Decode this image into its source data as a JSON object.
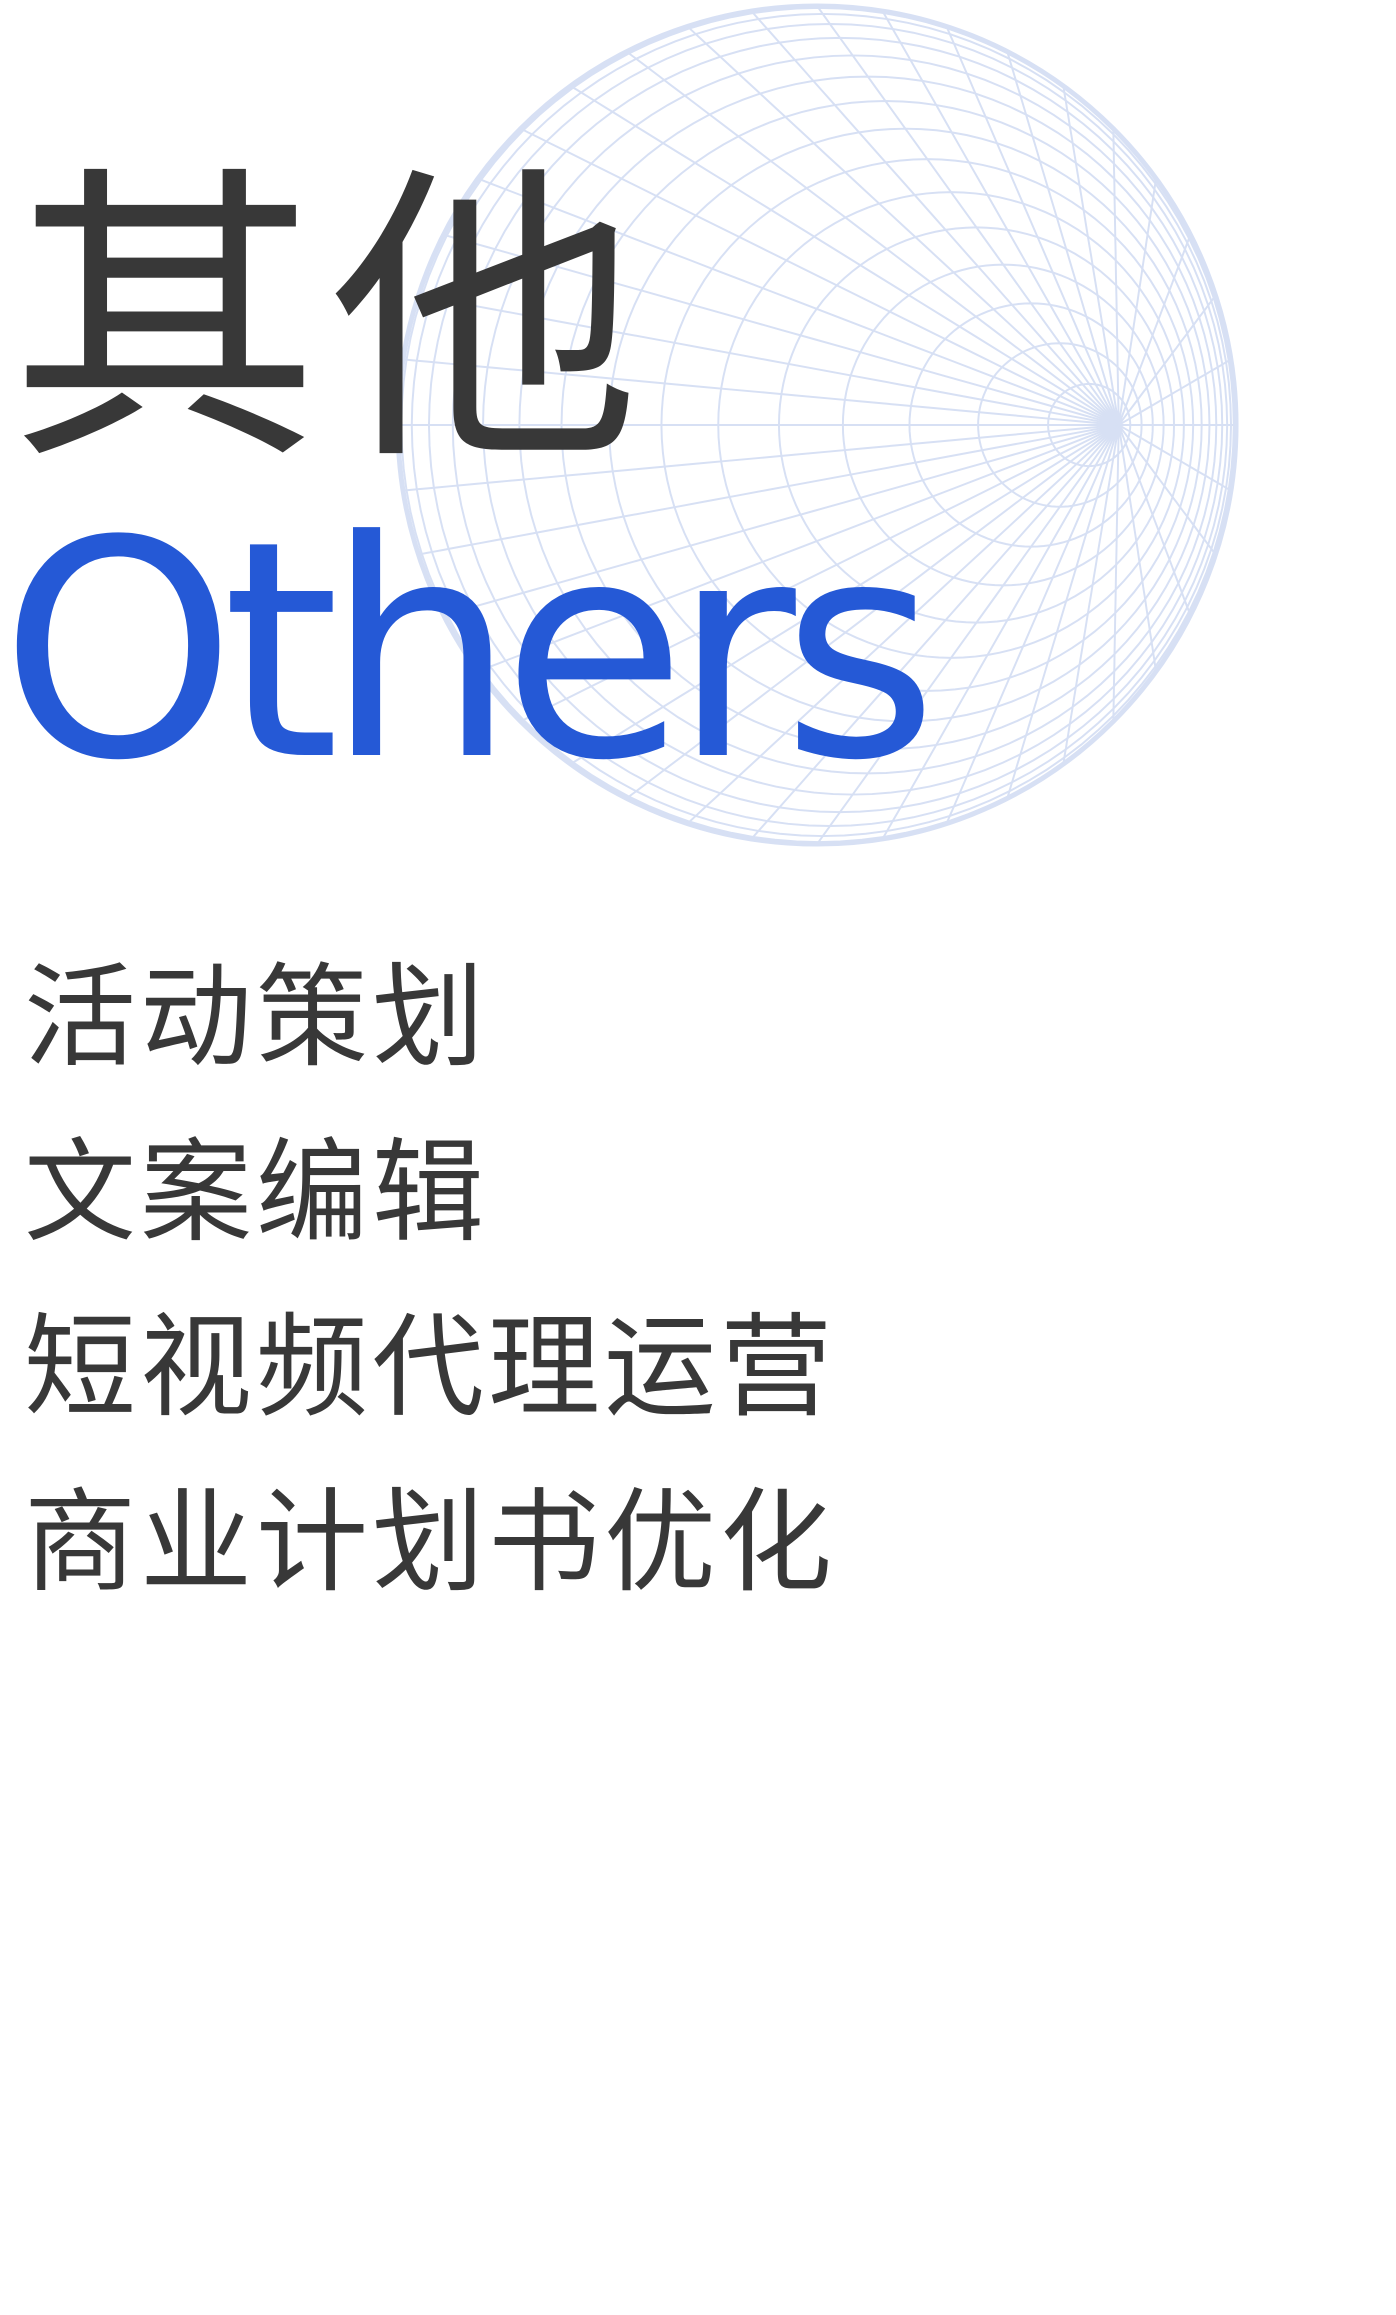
{
  "colors": {
    "text_dark": "#383838",
    "accent_blue": "#2559D6",
    "wireframe": "#D7E0F4",
    "background": "#FFFFFF"
  },
  "header": {
    "title_cn": "其他",
    "title_en": "Others"
  },
  "decoration": {
    "icon": "wireframe-sphere-icon"
  },
  "services": [
    {
      "label": "活动策划"
    },
    {
      "label": "文案编辑"
    },
    {
      "label": "短视频代理运营"
    },
    {
      "label": "商业计划书优化"
    }
  ]
}
